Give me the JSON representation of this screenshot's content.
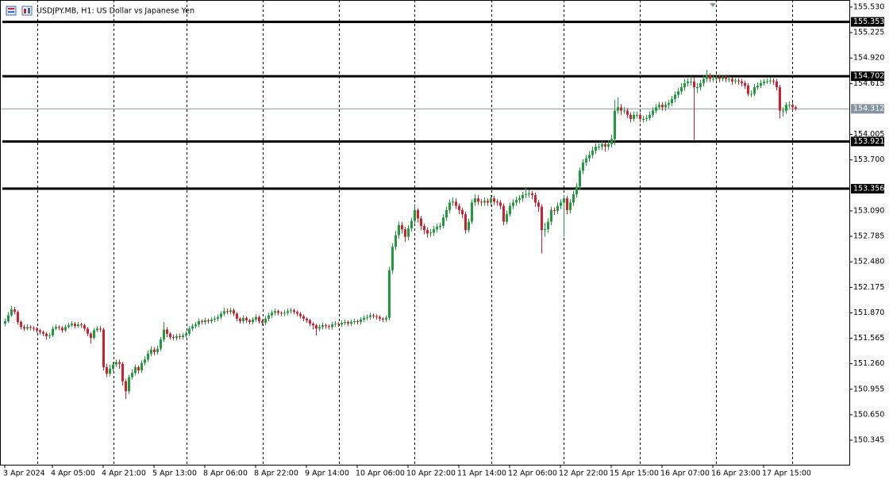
{
  "chart_data": {
    "type": "candlestick",
    "title": "USDJPY.MB, H1:  US Dollar vs Japanese Yen",
    "up_color": "#1f9a3c",
    "down_color": "#d2202e",
    "level_color": "#000000",
    "last_price_color": "#8795a3",
    "grid": true,
    "ylim": [
      150.051,
      155.615
    ],
    "yticks": [
      {
        "value": 155.53,
        "label": "155.530"
      },
      155.225,
      {
        "value": 154.92,
        "label": "154.920"
      },
      154.615,
      154.005,
      {
        "value": 153.7,
        "label": "153.700"
      },
      {
        "value": 153.09,
        "label": "153.090"
      },
      152.785,
      {
        "value": 152.48,
        "label": "152.480"
      },
      152.175,
      {
        "value": 151.87,
        "label": "151.870"
      },
      151.565,
      {
        "value": 151.26,
        "label": "151.260"
      },
      150.955,
      {
        "value": 150.65,
        "label": "150.650"
      },
      150.345
    ],
    "levels": [
      155.353,
      154.702,
      153.921,
      153.356
    ],
    "last_price": 154.312,
    "categories": [
      "3 Apr 2024",
      null,
      null,
      null,
      null,
      null,
      null,
      null,
      null,
      null,
      null,
      null,
      null,
      null,
      null,
      "4 Apr 05:00",
      null,
      null,
      null,
      null,
      null,
      null,
      null,
      null,
      null,
      null,
      null,
      null,
      null,
      null,
      null,
      "4 Apr 21:00",
      null,
      null,
      null,
      null,
      null,
      null,
      null,
      null,
      null,
      null,
      null,
      null,
      null,
      null,
      null,
      "5 Apr 13:00",
      null,
      null,
      null,
      null,
      null,
      null,
      null,
      null,
      null,
      null,
      null,
      null,
      null,
      null,
      null,
      "8 Apr 06:00",
      null,
      null,
      null,
      null,
      null,
      null,
      null,
      null,
      null,
      null,
      null,
      null,
      null,
      null,
      null,
      "8 Apr 22:00",
      null,
      null,
      null,
      null,
      null,
      null,
      null,
      null,
      null,
      null,
      null,
      null,
      null,
      null,
      null,
      "9 Apr 14:00",
      null,
      null,
      null,
      null,
      null,
      null,
      null,
      null,
      null,
      null,
      null,
      null,
      null,
      null,
      null,
      "10 Apr 06:00",
      null,
      null,
      null,
      null,
      null,
      null,
      null,
      null,
      null,
      null,
      null,
      null,
      null,
      null,
      null,
      "10 Apr 22:00",
      null,
      null,
      null,
      null,
      null,
      null,
      null,
      null,
      null,
      null,
      null,
      null,
      null,
      null,
      null,
      "11 Apr 14:00",
      null,
      null,
      null,
      null,
      null,
      null,
      null,
      null,
      null,
      null,
      null,
      null,
      null,
      null,
      null,
      "12 Apr 06:00",
      null,
      null,
      null,
      null,
      null,
      null,
      null,
      null,
      null,
      null,
      null,
      null,
      null,
      null,
      null,
      "12 Apr 22:00",
      null,
      null,
      null,
      null,
      null,
      null,
      null,
      null,
      null,
      null,
      null,
      null,
      null,
      null,
      null,
      "15 Apr 15:00",
      null,
      null,
      null,
      null,
      null,
      null,
      null,
      null,
      null,
      null,
      null,
      null,
      null,
      null,
      null,
      "16 Apr 07:00",
      null,
      null,
      null,
      null,
      null,
      null,
      null,
      null,
      null,
      null,
      null,
      null,
      null,
      null,
      null,
      "16 Apr 23:00",
      null,
      null,
      null,
      null,
      null,
      null,
      null,
      null,
      null,
      null,
      null,
      null,
      null,
      null,
      null,
      "17 Apr 15:00",
      null,
      null,
      null,
      null,
      null,
      null,
      null,
      null,
      null,
      null
    ],
    "open": [
      151.74,
      151.77,
      151.84,
      151.91,
      151.88,
      151.76,
      151.7,
      151.68,
      151.7,
      151.69,
      151.68,
      151.66,
      151.64,
      151.62,
      151.59,
      151.6,
      151.68,
      151.7,
      151.69,
      151.66,
      151.7,
      151.72,
      151.74,
      151.71,
      151.73,
      151.72,
      151.68,
      151.62,
      151.57,
      151.66,
      151.68,
      151.67,
      151.22,
      151.14,
      151.2,
      151.25,
      151.28,
      151.26,
      151.05,
      150.93,
      151.1,
      151.15,
      151.22,
      151.18,
      151.27,
      151.31,
      151.38,
      151.43,
      151.4,
      151.44,
      151.55,
      151.67,
      151.62,
      151.58,
      151.57,
      151.59,
      151.58,
      151.6,
      151.62,
      151.68,
      151.71,
      151.73,
      151.77,
      151.76,
      151.78,
      151.77,
      151.79,
      151.8,
      151.82,
      151.86,
      151.89,
      151.88,
      151.9,
      151.86,
      151.8,
      151.77,
      151.81,
      151.78,
      151.76,
      151.79,
      151.82,
      151.77,
      151.75,
      151.8,
      151.84,
      151.87,
      151.89,
      151.87,
      151.86,
      151.87,
      151.89,
      151.9,
      151.88,
      151.86,
      151.83,
      151.8,
      151.78,
      151.74,
      151.72,
      151.68,
      151.7,
      151.72,
      151.71,
      151.7,
      151.73,
      151.74,
      151.73,
      151.75,
      151.76,
      151.74,
      151.76,
      151.77,
      151.76,
      151.79,
      151.81,
      151.82,
      151.84,
      151.83,
      151.82,
      151.8,
      151.79,
      151.81,
      152.38,
      152.66,
      152.8,
      152.92,
      152.87,
      152.78,
      152.88,
      152.97,
      153.1,
      153.0,
      152.91,
      152.86,
      152.82,
      152.83,
      152.87,
      152.9,
      152.91,
      153.01,
      153.1,
      153.19,
      153.2,
      153.15,
      153.1,
      153.05,
      152.86,
      152.96,
      153.19,
      153.24,
      153.2,
      153.19,
      153.21,
      153.19,
      153.24,
      153.2,
      153.19,
      153.15,
      152.96,
      153.05,
      153.15,
      153.19,
      153.22,
      153.24,
      153.28,
      153.29,
      153.3,
      153.28,
      153.19,
      153.14,
      152.86,
      152.87,
      152.96,
      153.1,
      153.09,
      153.15,
      153.19,
      153.24,
      153.1,
      153.19,
      153.29,
      153.38,
      153.57,
      153.67,
      153.72,
      153.76,
      153.81,
      153.86,
      153.86,
      153.89,
      153.86,
      153.89,
      153.95,
      154.29,
      154.33,
      154.29,
      154.29,
      154.24,
      154.19,
      154.24,
      154.24,
      154.19,
      154.19,
      154.2,
      154.24,
      154.29,
      154.33,
      154.36,
      154.33,
      154.36,
      154.38,
      154.43,
      154.48,
      154.52,
      154.57,
      154.62,
      154.64,
      154.64,
      154.57,
      154.57,
      154.62,
      154.67,
      154.71,
      154.67,
      154.67,
      154.69,
      154.67,
      154.69,
      154.67,
      154.67,
      154.64,
      154.65,
      154.64,
      154.62,
      154.59,
      154.49,
      154.49,
      154.57,
      154.59,
      154.62,
      154.64,
      154.64,
      154.65,
      154.64,
      154.57,
      154.29,
      154.29,
      154.36,
      154.36,
      154.33
    ],
    "high": [
      151.8,
      151.88,
      151.95,
      151.94,
      151.9,
      151.78,
      151.73,
      151.73,
      151.72,
      151.71,
      151.7,
      151.68,
      151.66,
      151.64,
      151.63,
      151.71,
      151.73,
      151.72,
      151.71,
      151.73,
      151.75,
      151.77,
      151.76,
      151.76,
      151.75,
      151.74,
      151.7,
      151.64,
      151.69,
      151.71,
      151.71,
      151.69,
      151.26,
      151.25,
      151.28,
      151.31,
      151.31,
      151.28,
      151.08,
      151.13,
      151.19,
      151.25,
      151.24,
      151.3,
      151.35,
      151.42,
      151.47,
      151.46,
      151.48,
      151.58,
      151.76,
      151.7,
      151.64,
      151.61,
      151.62,
      151.62,
      151.63,
      151.65,
      151.71,
      151.74,
      151.76,
      151.8,
      151.79,
      151.81,
      151.8,
      151.82,
      151.83,
      151.85,
      151.89,
      151.93,
      151.92,
      151.93,
      151.92,
      151.88,
      151.82,
      151.84,
      151.83,
      151.8,
      151.82,
      151.85,
      151.84,
      151.79,
      151.83,
      151.87,
      151.9,
      151.92,
      151.91,
      151.89,
      151.9,
      151.92,
      151.93,
      151.92,
      151.9,
      151.88,
      151.85,
      151.82,
      151.8,
      151.76,
      151.74,
      151.73,
      151.75,
      151.74,
      151.73,
      151.76,
      151.77,
      151.76,
      151.78,
      151.79,
      151.78,
      151.79,
      151.8,
      151.79,
      151.82,
      151.84,
      151.85,
      151.87,
      151.86,
      151.85,
      151.84,
      151.82,
      151.84,
      152.42,
      152.7,
      152.85,
      152.96,
      152.96,
      152.9,
      152.92,
      153.01,
      153.16,
      153.12,
      153.03,
      152.94,
      152.89,
      152.87,
      152.91,
      152.94,
      152.95,
      153.05,
      153.14,
      153.23,
      153.25,
      153.24,
      153.18,
      153.13,
      153.08,
      153.0,
      153.23,
      153.29,
      153.28,
      153.23,
      153.25,
      153.24,
      153.28,
      153.27,
      153.23,
      153.22,
      153.18,
      153.09,
      153.19,
      153.23,
      153.26,
      153.28,
      153.32,
      153.36,
      153.34,
      153.33,
      153.31,
      153.22,
      153.17,
      152.95,
      153.0,
      153.14,
      153.13,
      153.19,
      153.23,
      153.28,
      153.27,
      153.23,
      153.33,
      153.42,
      153.61,
      153.71,
      153.76,
      153.8,
      153.86,
      153.9,
      153.9,
      153.93,
      153.92,
      153.93,
      154.0,
      154.42,
      154.45,
      154.37,
      154.33,
      154.32,
      154.27,
      154.28,
      154.28,
      154.27,
      154.23,
      154.24,
      154.28,
      154.33,
      154.37,
      154.4,
      154.39,
      154.4,
      154.42,
      154.47,
      154.52,
      154.56,
      154.62,
      154.67,
      154.68,
      154.7,
      154.69,
      154.62,
      154.66,
      154.71,
      154.78,
      154.74,
      154.71,
      154.73,
      154.72,
      154.72,
      154.72,
      154.7,
      154.69,
      154.68,
      154.68,
      154.67,
      154.65,
      154.62,
      154.53,
      154.61,
      154.63,
      154.66,
      154.67,
      154.68,
      154.69,
      154.68,
      154.67,
      154.6,
      154.33,
      154.39,
      154.4,
      154.39,
      154.35
    ],
    "low": [
      151.71,
      151.75,
      151.82,
      151.85,
      151.73,
      151.67,
      151.65,
      151.66,
      151.66,
      151.65,
      151.63,
      151.61,
      151.59,
      151.55,
      151.56,
      151.58,
      151.66,
      151.66,
      151.63,
      151.64,
      151.68,
      151.7,
      151.68,
      151.69,
      151.69,
      151.65,
      151.59,
      151.5,
      151.55,
      151.64,
      151.64,
      151.18,
      151.1,
      151.11,
      151.17,
      151.22,
      151.2,
      151.0,
      150.84,
      150.9,
      151.07,
      151.12,
      151.14,
      151.15,
      151.24,
      151.28,
      151.35,
      151.36,
      151.37,
      151.41,
      151.52,
      151.58,
      151.55,
      151.54,
      151.54,
      151.55,
      151.55,
      151.57,
      151.59,
      151.65,
      151.68,
      151.7,
      151.73,
      151.73,
      151.74,
      151.74,
      151.76,
      151.77,
      151.79,
      151.83,
      151.85,
      151.85,
      151.83,
      151.77,
      151.74,
      151.74,
      151.75,
      151.73,
      151.73,
      151.76,
      151.74,
      151.72,
      151.72,
      151.77,
      151.81,
      151.84,
      151.84,
      151.83,
      151.83,
      151.84,
      151.86,
      151.85,
      151.83,
      151.8,
      151.77,
      151.75,
      151.71,
      151.67,
      151.6,
      151.65,
      151.67,
      151.68,
      151.67,
      151.67,
      151.7,
      151.7,
      151.7,
      151.72,
      151.71,
      151.71,
      151.73,
      151.73,
      151.73,
      151.76,
      151.78,
      151.79,
      151.8,
      151.79,
      151.77,
      151.76,
      151.76,
      151.78,
      152.34,
      152.62,
      152.76,
      152.82,
      152.72,
      152.74,
      152.84,
      152.93,
      152.95,
      152.86,
      152.81,
      152.77,
      152.78,
      152.79,
      152.83,
      152.86,
      152.88,
      152.97,
      153.06,
      153.15,
      153.11,
      153.05,
      153.0,
      152.82,
      152.83,
      152.93,
      153.15,
      153.16,
      153.15,
      153.15,
      153.15,
      153.15,
      153.16,
      153.15,
      153.11,
      152.92,
      152.93,
      153.02,
      153.11,
      153.15,
      153.18,
      153.2,
      153.24,
      153.25,
      153.23,
      153.14,
      153.08,
      152.58,
      152.78,
      152.83,
      152.92,
      153.04,
      153.05,
      153.11,
      152.78,
      153.05,
      153.06,
      153.15,
      153.25,
      153.34,
      153.53,
      153.63,
      153.68,
      153.72,
      153.77,
      153.82,
      153.82,
      153.8,
      153.82,
      153.85,
      153.88,
      154.25,
      154.24,
      154.25,
      154.2,
      154.15,
      154.16,
      154.2,
      154.15,
      154.15,
      154.16,
      154.17,
      154.21,
      154.26,
      154.3,
      154.29,
      154.29,
      154.32,
      154.34,
      154.39,
      154.44,
      154.48,
      154.53,
      154.58,
      154.59,
      153.94,
      154.5,
      154.53,
      154.58,
      154.63,
      154.63,
      154.63,
      154.64,
      154.63,
      154.64,
      154.63,
      154.63,
      154.6,
      154.61,
      154.6,
      154.58,
      154.55,
      154.46,
      154.45,
      154.46,
      154.54,
      154.56,
      154.59,
      154.61,
      154.61,
      154.6,
      154.53,
      154.2,
      154.22,
      154.25,
      154.32,
      154.29,
      154.29
    ],
    "close": [
      151.77,
      151.84,
      151.91,
      151.88,
      151.76,
      151.7,
      151.68,
      151.7,
      151.69,
      151.68,
      151.66,
      151.64,
      151.62,
      151.59,
      151.6,
      151.68,
      151.7,
      151.69,
      151.66,
      151.7,
      151.72,
      151.74,
      151.71,
      151.73,
      151.72,
      151.68,
      151.62,
      151.57,
      151.66,
      151.68,
      151.67,
      151.22,
      151.14,
      151.2,
      151.25,
      151.28,
      151.26,
      151.05,
      150.93,
      151.1,
      151.15,
      151.22,
      151.18,
      151.27,
      151.31,
      151.38,
      151.43,
      151.4,
      151.44,
      151.55,
      151.67,
      151.62,
      151.58,
      151.57,
      151.59,
      151.58,
      151.6,
      151.62,
      151.68,
      151.71,
      151.73,
      151.77,
      151.76,
      151.78,
      151.77,
      151.79,
      151.8,
      151.82,
      151.86,
      151.89,
      151.88,
      151.9,
      151.86,
      151.8,
      151.77,
      151.81,
      151.78,
      151.76,
      151.79,
      151.82,
      151.77,
      151.75,
      151.8,
      151.84,
      151.87,
      151.89,
      151.87,
      151.86,
      151.87,
      151.89,
      151.9,
      151.88,
      151.86,
      151.83,
      151.8,
      151.78,
      151.74,
      151.72,
      151.68,
      151.7,
      151.72,
      151.71,
      151.7,
      151.73,
      151.74,
      151.73,
      151.75,
      151.76,
      151.74,
      151.76,
      151.77,
      151.76,
      151.79,
      151.81,
      151.82,
      151.84,
      151.83,
      151.82,
      151.8,
      151.79,
      151.81,
      152.38,
      152.66,
      152.8,
      152.92,
      152.87,
      152.78,
      152.88,
      152.97,
      153.1,
      153.0,
      152.91,
      152.86,
      152.82,
      152.83,
      152.87,
      152.9,
      152.91,
      153.01,
      153.1,
      153.19,
      153.2,
      153.15,
      153.1,
      153.05,
      152.86,
      152.96,
      153.19,
      153.24,
      153.2,
      153.19,
      153.21,
      153.19,
      153.24,
      153.2,
      153.19,
      153.15,
      152.96,
      153.05,
      153.15,
      153.19,
      153.22,
      153.24,
      153.28,
      153.29,
      153.3,
      153.28,
      153.19,
      153.14,
      152.86,
      152.87,
      152.96,
      153.1,
      153.09,
      153.15,
      153.19,
      153.24,
      153.1,
      153.19,
      153.29,
      153.38,
      153.57,
      153.67,
      153.72,
      153.76,
      153.81,
      153.86,
      153.86,
      153.89,
      153.86,
      153.89,
      153.95,
      154.29,
      154.33,
      154.29,
      154.29,
      154.24,
      154.19,
      154.24,
      154.24,
      154.19,
      154.19,
      154.2,
      154.24,
      154.29,
      154.33,
      154.36,
      154.33,
      154.36,
      154.38,
      154.43,
      154.48,
      154.52,
      154.57,
      154.62,
      154.64,
      154.64,
      154.57,
      154.57,
      154.62,
      154.67,
      154.71,
      154.67,
      154.67,
      154.69,
      154.67,
      154.69,
      154.67,
      154.67,
      154.64,
      154.65,
      154.64,
      154.62,
      154.59,
      154.49,
      154.49,
      154.57,
      154.59,
      154.62,
      154.64,
      154.64,
      154.65,
      154.64,
      154.57,
      154.29,
      154.29,
      154.36,
      154.36,
      154.33,
      154.312
    ]
  }
}
